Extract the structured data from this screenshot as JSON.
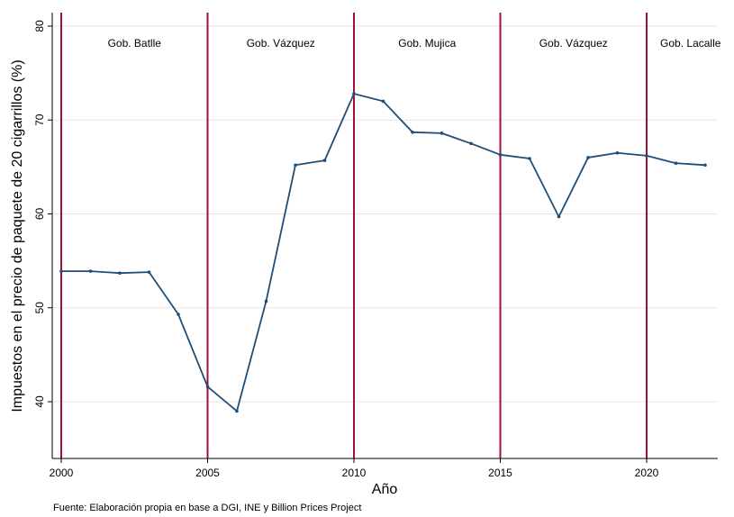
{
  "chart_data": {
    "type": "line",
    "title": "",
    "xlabel": "Año",
    "ylabel": "Impuestos en el precio de paquete de 20 cigarrillos (%)",
    "xlim": [
      2000,
      2022.5
    ],
    "ylim": [
      34,
      81
    ],
    "xticks": [
      2000,
      2005,
      2010,
      2015,
      2020
    ],
    "yticks": [
      40,
      50,
      60,
      70,
      80
    ],
    "grid": true,
    "legend": "none",
    "series": [
      {
        "x": [
          2000,
          2001,
          2002,
          2003,
          2004,
          2005,
          2006,
          2007,
          2008,
          2009,
          2010,
          2011,
          2012,
          2013,
          2014,
          2015,
          2016,
          2017,
          2018,
          2019,
          2020,
          2021,
          2022
        ],
        "values": [
          53.9,
          53.9,
          53.7,
          53.8,
          49.3,
          41.6,
          39.0,
          50.7,
          65.2,
          65.7,
          72.8,
          72.0,
          68.7,
          68.6,
          67.5,
          66.3,
          65.9,
          59.7,
          66.0,
          66.5,
          66.2,
          65.4,
          65.2
        ],
        "color": "#1f4e79"
      }
    ],
    "vlines": [
      {
        "x": 2000,
        "color": "#a3103b"
      },
      {
        "x": 2005,
        "color": "#a3103b"
      },
      {
        "x": 2010,
        "color": "#a3103b"
      },
      {
        "x": 2015,
        "color": "#a3103b"
      },
      {
        "x": 2020,
        "color": "#a3103b"
      }
    ],
    "annotations": [
      {
        "text": "Gob. Batlle",
        "x": 2002.5
      },
      {
        "text": "Gob. Vázquez",
        "x": 2007.5
      },
      {
        "text": "Gob. Mujica",
        "x": 2012.5
      },
      {
        "text": "Gob. Vázquez",
        "x": 2017.5
      },
      {
        "text": "Gob. Lacalle",
        "x": 2021.5
      }
    ],
    "note": "Fuente: Elaboración propia en base a DGI, INE y Billion Prices Project"
  }
}
